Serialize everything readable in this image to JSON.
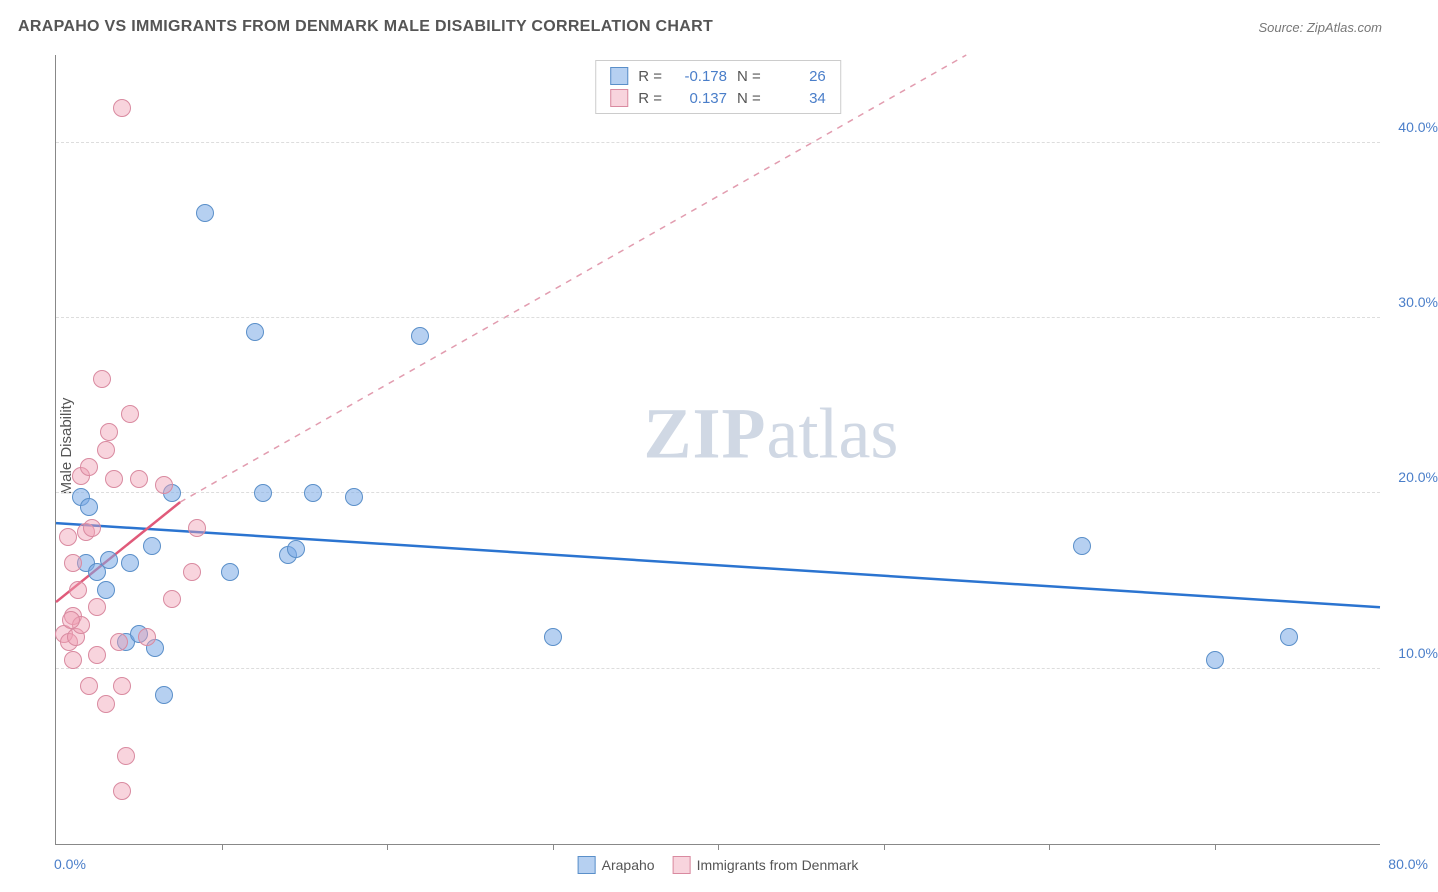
{
  "title": "ARAPAHO VS IMMIGRANTS FROM DENMARK MALE DISABILITY CORRELATION CHART",
  "source": "Source: ZipAtlas.com",
  "ylabel": "Male Disability",
  "watermark": {
    "part1": "ZIP",
    "part2": "atlas"
  },
  "chart": {
    "type": "scatter",
    "background_color": "#ffffff",
    "grid_color": "#dddddd",
    "axis_color": "#888888",
    "tick_label_color": "#4a7ec9",
    "title_color": "#555555",
    "title_fontsize": 16,
    "label_fontsize": 15,
    "tick_fontsize": 14,
    "xlim": [
      0,
      80
    ],
    "ylim": [
      0,
      45
    ],
    "yticks": [
      10,
      20,
      30,
      40
    ],
    "ytick_labels": [
      "10.0%",
      "20.0%",
      "30.0%",
      "40.0%"
    ],
    "xtick_positions": [
      10,
      20,
      30,
      40,
      50,
      60,
      70
    ],
    "xtick_labels": {
      "left": "0.0%",
      "right": "80.0%"
    },
    "marker_radius": 9,
    "series": [
      {
        "id": "a",
        "label": "Arapaho",
        "color": "#7aaae6",
        "border_color": "#5a8fc9",
        "fill_opacity": 0.55,
        "R": "-0.178",
        "N": "26",
        "trend": {
          "type": "solid",
          "x1": 0,
          "y1": 18.3,
          "x2": 80,
          "y2": 13.5,
          "stroke_width": 2.5,
          "color": "#2b74d0"
        },
        "points": [
          [
            1.5,
            19.8
          ],
          [
            2.0,
            19.2
          ],
          [
            1.8,
            16.0
          ],
          [
            3.2,
            16.2
          ],
          [
            4.5,
            16.0
          ],
          [
            5.8,
            17.0
          ],
          [
            3.0,
            14.5
          ],
          [
            4.2,
            11.5
          ],
          [
            6.0,
            11.2
          ],
          [
            6.5,
            8.5
          ],
          [
            7.0,
            20.0
          ],
          [
            9.0,
            36.0
          ],
          [
            10.5,
            15.5
          ],
          [
            12.0,
            29.2
          ],
          [
            12.5,
            20.0
          ],
          [
            14.0,
            16.5
          ],
          [
            14.5,
            16.8
          ],
          [
            15.5,
            20.0
          ],
          [
            18.0,
            19.8
          ],
          [
            22.0,
            29.0
          ],
          [
            30.0,
            11.8
          ],
          [
            62.0,
            17.0
          ],
          [
            70.0,
            10.5
          ],
          [
            74.5,
            11.8
          ],
          [
            2.5,
            15.5
          ],
          [
            5.0,
            12.0
          ]
        ]
      },
      {
        "id": "b",
        "label": "Immigrants from Denmark",
        "color": "#f0a0b4",
        "border_color": "#d98aa0",
        "fill_opacity": 0.45,
        "R": "0.137",
        "N": "34",
        "trend": {
          "type": "dashed",
          "x1": 0,
          "y1": 13.8,
          "x2": 55,
          "y2": 45,
          "tail_x": 7.5,
          "tail_y": 19.5,
          "stroke_width": 1.5,
          "color": "#e29caf",
          "solid_color": "#e05a7a"
        },
        "points": [
          [
            0.5,
            12.0
          ],
          [
            0.8,
            11.5
          ],
          [
            1.0,
            13.0
          ],
          [
            1.2,
            11.8
          ],
          [
            1.5,
            12.5
          ],
          [
            1.0,
            16.0
          ],
          [
            0.7,
            17.5
          ],
          [
            1.8,
            17.8
          ],
          [
            2.2,
            18.0
          ],
          [
            1.5,
            21.0
          ],
          [
            2.0,
            21.5
          ],
          [
            3.0,
            22.5
          ],
          [
            3.2,
            23.5
          ],
          [
            4.5,
            24.5
          ],
          [
            3.5,
            20.8
          ],
          [
            5.0,
            20.8
          ],
          [
            6.5,
            20.5
          ],
          [
            4.0,
            42.0
          ],
          [
            2.8,
            26.5
          ],
          [
            1.0,
            10.5
          ],
          [
            2.5,
            10.8
          ],
          [
            3.8,
            11.5
          ],
          [
            2.0,
            9.0
          ],
          [
            4.0,
            9.0
          ],
          [
            5.5,
            11.8
          ],
          [
            3.0,
            8.0
          ],
          [
            4.2,
            5.0
          ],
          [
            4.0,
            3.0
          ],
          [
            7.0,
            14.0
          ],
          [
            8.2,
            15.5
          ],
          [
            8.5,
            18.0
          ],
          [
            1.3,
            14.5
          ],
          [
            2.5,
            13.5
          ],
          [
            0.9,
            12.8
          ]
        ]
      }
    ],
    "legend_top": {
      "rows": [
        {
          "series": "a",
          "r_label": "R =",
          "n_label": "N ="
        },
        {
          "series": "b",
          "r_label": "R =",
          "n_label": "N ="
        }
      ]
    }
  }
}
